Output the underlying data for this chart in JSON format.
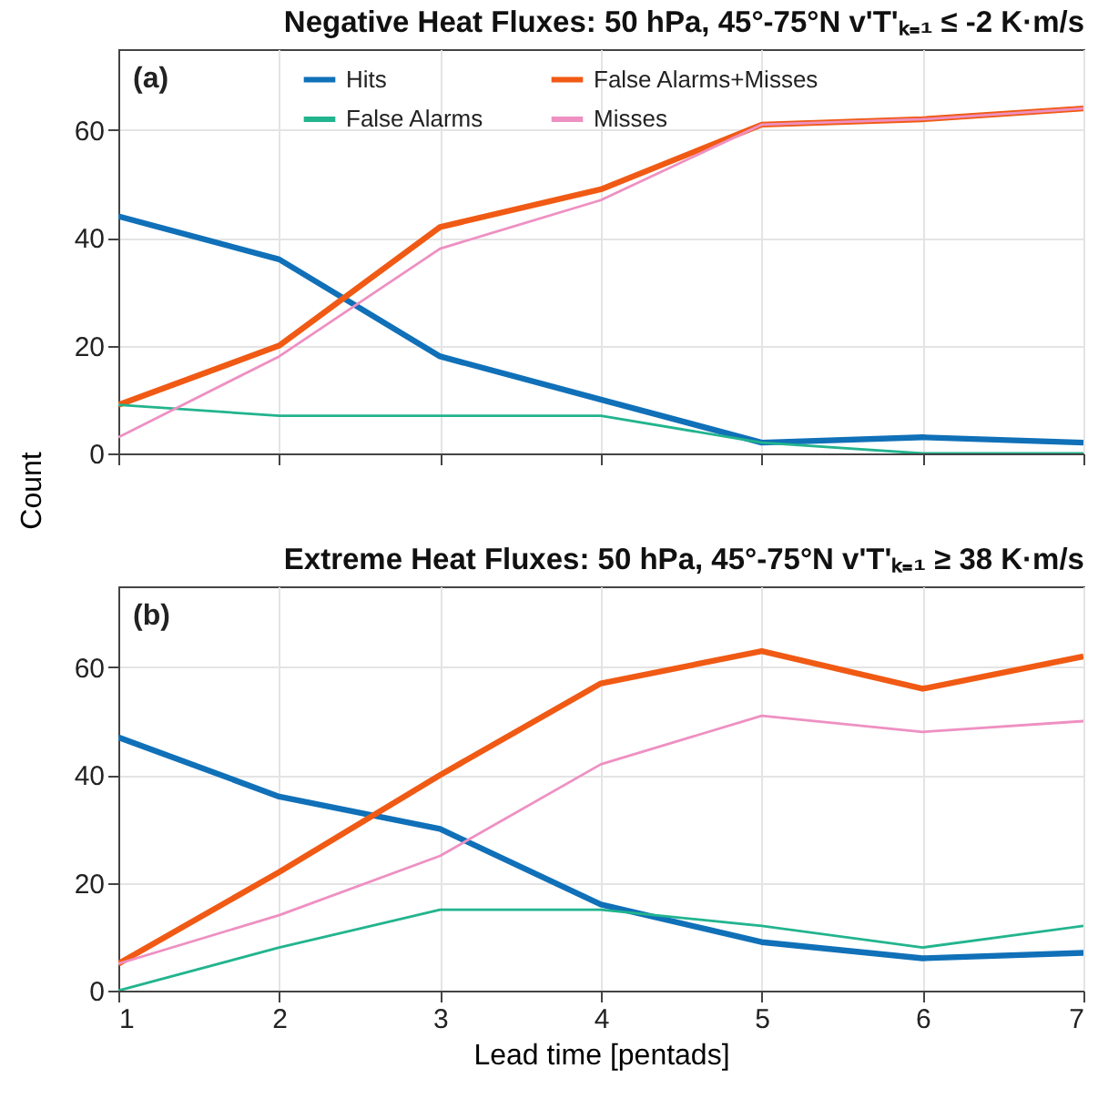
{
  "chart_data": [
    {
      "type": "line",
      "title": "Negative Heat Fluxes: 50 hPa, 45°-75°N v'T'ₖ₌₁ ≤ -2  K·m/s",
      "ylabel": "Count",
      "annotations": [
        "(a)"
      ],
      "x": [
        1,
        2,
        3,
        4,
        5,
        6,
        7
      ],
      "xlim": [
        1,
        7
      ],
      "xticks": [
        1,
        2,
        3,
        4,
        5,
        6,
        7
      ],
      "ylim": [
        0,
        75
      ],
      "yticks": [
        0,
        20,
        40,
        60
      ],
      "grid": true,
      "legend": "top",
      "tick_labels": "y",
      "series": [
        {
          "name": "Hits",
          "color": "#1070b8",
          "values": [
            44,
            36,
            18,
            10,
            2,
            3,
            2
          ]
        },
        {
          "name": "False Alarms+Misses",
          "color": "#f05a14",
          "values": [
            9,
            20,
            42,
            49,
            61,
            62,
            64
          ]
        },
        {
          "name": "False Alarms",
          "color": "#22b48e",
          "values": [
            9,
            7,
            7,
            7,
            2,
            0,
            0
          ]
        },
        {
          "name": "Misses",
          "color": "#ee90c2",
          "values": [
            3,
            18,
            38,
            47,
            61,
            62,
            64
          ]
        }
      ]
    },
    {
      "type": "line",
      "title": "Extreme Heat Fluxes: 50 hPa, 45°-75°N v'T'ₖ₌₁ ≥ 38  K·m/s",
      "xlabel": "Lead time [pentads]",
      "annotations": [
        "(b)"
      ],
      "x": [
        1,
        2,
        3,
        4,
        5,
        6,
        7
      ],
      "xlim": [
        1,
        7
      ],
      "xticks": [
        1,
        2,
        3,
        4,
        5,
        6,
        7
      ],
      "ylim": [
        0,
        75
      ],
      "yticks": [
        0,
        20,
        40,
        60
      ],
      "grid": true,
      "series": [
        {
          "color": "#1070b8",
          "values": [
            47,
            36,
            30,
            16,
            9,
            6,
            7
          ]
        },
        {
          "color": "#f05a14",
          "values": [
            5,
            22,
            40,
            57,
            63,
            56,
            62
          ]
        },
        {
          "color": "#22b48e",
          "values": [
            0,
            8,
            15,
            15,
            12,
            8,
            12
          ]
        },
        {
          "color": "#ee90c2",
          "values": [
            5,
            14,
            25,
            42,
            51,
            48,
            50
          ]
        }
      ]
    }
  ]
}
